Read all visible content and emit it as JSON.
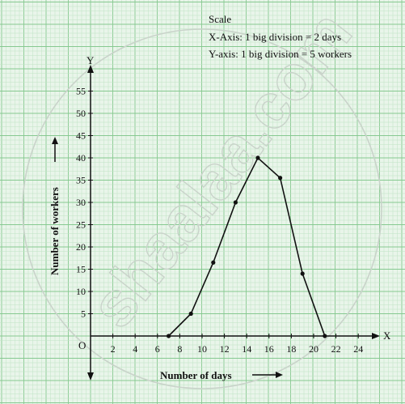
{
  "chart_data": {
    "type": "line",
    "title": "",
    "xlabel": "Number of days",
    "ylabel": "Number of workers",
    "x_axis_letter": "X",
    "y_axis_letter": "Y",
    "origin_label": "O",
    "x_ticks": [
      2,
      4,
      6,
      8,
      10,
      12,
      14,
      16,
      18,
      20,
      22,
      24
    ],
    "y_ticks": [
      5,
      10,
      15,
      20,
      25,
      30,
      35,
      40,
      45,
      50,
      55
    ],
    "xlim": [
      0,
      25.5
    ],
    "ylim": [
      0,
      58
    ],
    "grid": true,
    "series": [
      {
        "x": [
          7,
          9,
          11,
          13,
          15,
          17,
          19,
          21
        ],
        "y": [
          0,
          5,
          16.5,
          30,
          40,
          35.5,
          14,
          0
        ]
      }
    ],
    "scale_notes": [
      "Scale",
      "X-Axis: 1 big division = 2 days",
      "Y-axis: 1 big division = 5 workers"
    ]
  },
  "watermark_text": "shaalaa.com",
  "colors": {
    "background": "#e9f5ea",
    "grid_minor": "#bfe3c4",
    "grid_major": "#86c990",
    "line": "#111111"
  }
}
